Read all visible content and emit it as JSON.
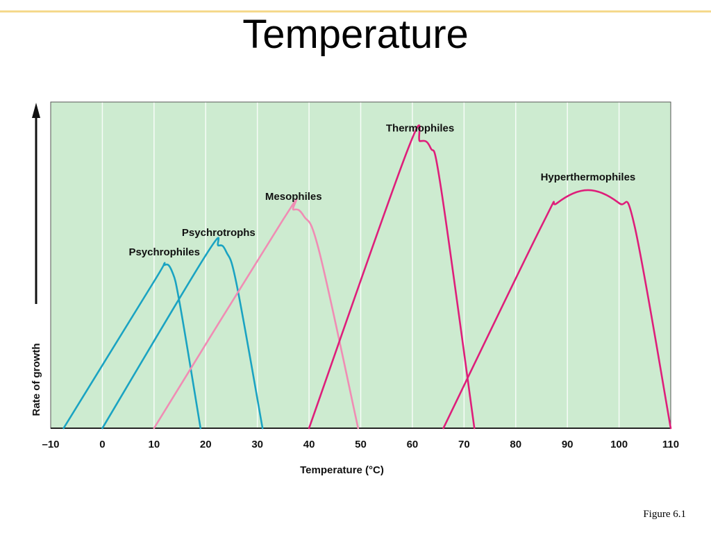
{
  "slide": {
    "title": "Temperature",
    "caption": "Figure 6.1"
  },
  "chart_data": {
    "type": "line",
    "title": "",
    "xlabel": "Temperature (°C)",
    "ylabel": "Rate of growth",
    "xlim": [
      -10,
      110
    ],
    "ylim": [
      0,
      100
    ],
    "x_ticks": [
      -10,
      0,
      10,
      20,
      30,
      40,
      50,
      60,
      70,
      80,
      90,
      100,
      110
    ],
    "x_tick_labels": [
      "–10",
      "0",
      "10",
      "20",
      "30",
      "40",
      "50",
      "60",
      "70",
      "80",
      "90",
      "100",
      "110"
    ],
    "grid": "vertical",
    "legend": "labels on curves",
    "background_color": "#cdebd0",
    "series": [
      {
        "name": "Psychrophiles",
        "color": "#1aa3c2",
        "points": [
          [
            -7.5,
            0
          ],
          [
            10,
            45
          ],
          [
            12,
            50
          ],
          [
            13.5,
            48
          ],
          [
            15,
            38
          ],
          [
            19,
            0
          ]
        ]
      },
      {
        "name": "Psychrotrophs",
        "color": "#1aa3c2",
        "points": [
          [
            0,
            0
          ],
          [
            20,
            53
          ],
          [
            22.5,
            56
          ],
          [
            24,
            54
          ],
          [
            26,
            44
          ],
          [
            31,
            0
          ]
        ]
      },
      {
        "name": "Mesophiles",
        "color": "#f08cb4",
        "points": [
          [
            10,
            0
          ],
          [
            35,
            64
          ],
          [
            37,
            67
          ],
          [
            39,
            65
          ],
          [
            42,
            54
          ],
          [
            49.5,
            0
          ]
        ]
      },
      {
        "name": "Thermophiles",
        "color": "#de1e7a",
        "points": [
          [
            40,
            0
          ],
          [
            59,
            85
          ],
          [
            61.5,
            88
          ],
          [
            63.5,
            86
          ],
          [
            65.5,
            74
          ],
          [
            72,
            0
          ]
        ]
      },
      {
        "name": "Hyperthermophiles",
        "color": "#de1e7a",
        "points": [
          [
            66,
            0
          ],
          [
            85,
            62
          ],
          [
            88,
            69
          ],
          [
            94,
            73
          ],
          [
            100,
            69
          ],
          [
            103,
            62
          ],
          [
            110,
            0
          ]
        ]
      }
    ]
  }
}
